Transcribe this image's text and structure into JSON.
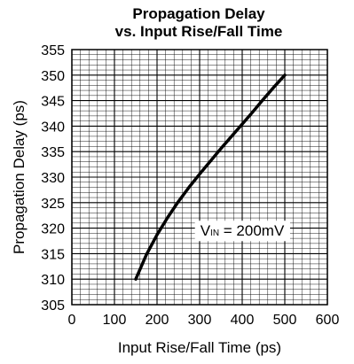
{
  "chart_data": {
    "type": "line",
    "title_line1": "Propagation Delay",
    "title_line2": "vs. Input Rise/Fall Time",
    "xlabel": "Input Rise/Fall Time (ps)",
    "ylabel": "Propagation Delay (ps)",
    "xlim": [
      0,
      600
    ],
    "ylim": [
      305,
      355
    ],
    "xticks": [
      0,
      100,
      200,
      300,
      400,
      500,
      600
    ],
    "yticks": [
      305,
      310,
      315,
      320,
      325,
      330,
      335,
      340,
      345,
      350,
      355
    ],
    "grid": true,
    "annotation": {
      "main": "V",
      "sub": "IN",
      "rest": " = 200mV",
      "x": 400,
      "y": 318.5
    },
    "series": [
      {
        "x": [
          150,
          175,
          200,
          225,
          250,
          275,
          300,
          325,
          350,
          375,
          400,
          425,
          450,
          475,
          500
        ],
        "y": [
          310,
          314.8,
          318.7,
          322.1,
          325.2,
          328.0,
          330.6,
          333.1,
          335.6,
          338.0,
          340.4,
          342.8,
          345.3,
          347.7,
          350
        ]
      }
    ],
    "line_color": "#000000"
  }
}
